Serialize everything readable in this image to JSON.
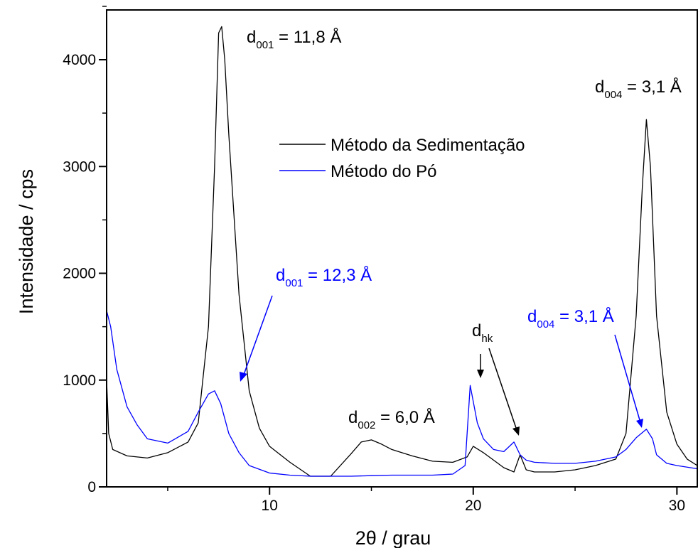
{
  "chart_data": {
    "type": "line",
    "title": "",
    "xlabel": "2θ / grau",
    "ylabel": "Intensidade / cps",
    "xlim": [
      2,
      31
    ],
    "ylim": [
      0,
      4500
    ],
    "x_ticks": [
      10,
      20,
      30
    ],
    "y_ticks": [
      0,
      1000,
      2000,
      3000,
      4000
    ],
    "grid": false,
    "legend_position": "center",
    "colors": {
      "black": "#000000",
      "blue": "#0000ff"
    },
    "series": [
      {
        "name": "Método da Sedimentação",
        "color": "#000000",
        "points": [
          [
            2.0,
            1000
          ],
          [
            2.1,
            500
          ],
          [
            2.3,
            350
          ],
          [
            3,
            290
          ],
          [
            4,
            270
          ],
          [
            5,
            320
          ],
          [
            6,
            420
          ],
          [
            6.5,
            600
          ],
          [
            7,
            1500
          ],
          [
            7.3,
            3000
          ],
          [
            7.5,
            4250
          ],
          [
            7.65,
            4310
          ],
          [
            7.8,
            4000
          ],
          [
            8,
            3300
          ],
          [
            8.5,
            1800
          ],
          [
            9,
            900
          ],
          [
            9.5,
            550
          ],
          [
            10,
            380
          ],
          [
            11,
            230
          ],
          [
            12,
            100
          ],
          [
            13,
            100
          ],
          [
            14,
            310
          ],
          [
            14.5,
            420
          ],
          [
            15,
            440
          ],
          [
            15.5,
            400
          ],
          [
            16,
            350
          ],
          [
            17,
            290
          ],
          [
            18,
            240
          ],
          [
            19,
            230
          ],
          [
            19.7,
            280
          ],
          [
            20,
            380
          ],
          [
            20.5,
            320
          ],
          [
            21,
            250
          ],
          [
            21.5,
            180
          ],
          [
            22,
            140
          ],
          [
            22.3,
            300
          ],
          [
            22.6,
            160
          ],
          [
            23,
            140
          ],
          [
            24,
            140
          ],
          [
            25,
            160
          ],
          [
            26,
            200
          ],
          [
            27,
            260
          ],
          [
            27.5,
            500
          ],
          [
            28,
            1600
          ],
          [
            28.3,
            2800
          ],
          [
            28.5,
            3440
          ],
          [
            28.7,
            3000
          ],
          [
            29,
            1600
          ],
          [
            29.5,
            700
          ],
          [
            30,
            400
          ],
          [
            30.5,
            260
          ],
          [
            31,
            200
          ]
        ],
        "x": [
          2.0,
          2.1,
          2.3,
          3,
          4,
          5,
          6,
          6.5,
          7,
          7.3,
          7.5,
          7.65,
          7.8,
          8,
          8.5,
          9,
          9.5,
          10,
          11,
          12,
          13,
          14,
          14.5,
          15,
          15.5,
          16,
          17,
          18,
          19,
          19.7,
          20,
          20.5,
          21,
          21.5,
          22,
          22.3,
          22.6,
          23,
          24,
          25,
          26,
          27,
          27.5,
          28,
          28.3,
          28.5,
          28.7,
          29,
          29.5,
          30,
          30.5,
          31
        ],
        "y": [
          1000,
          500,
          350,
          290,
          270,
          320,
          420,
          600,
          1500,
          3000,
          4250,
          4310,
          4000,
          3300,
          1800,
          900,
          550,
          380,
          230,
          100,
          100,
          310,
          420,
          440,
          400,
          350,
          290,
          240,
          230,
          280,
          380,
          320,
          250,
          180,
          140,
          300,
          160,
          140,
          140,
          160,
          200,
          260,
          500,
          1600,
          2800,
          3440,
          3000,
          1600,
          700,
          400,
          260,
          200
        ]
      },
      {
        "name": "Método do Pó",
        "color": "#0000ff",
        "points": [
          [
            2.0,
            1650
          ],
          [
            2.2,
            1500
          ],
          [
            2.5,
            1100
          ],
          [
            3,
            750
          ],
          [
            3.5,
            580
          ],
          [
            4,
            450
          ],
          [
            5,
            410
          ],
          [
            6,
            520
          ],
          [
            6.5,
            700
          ],
          [
            7,
            870
          ],
          [
            7.3,
            900
          ],
          [
            7.6,
            780
          ],
          [
            8,
            500
          ],
          [
            8.5,
            320
          ],
          [
            9,
            200
          ],
          [
            10,
            130
          ],
          [
            11,
            110
          ],
          [
            12,
            100
          ],
          [
            13,
            100
          ],
          [
            14,
            100
          ],
          [
            15,
            105
          ],
          [
            16,
            110
          ],
          [
            17,
            110
          ],
          [
            18,
            110
          ],
          [
            19,
            120
          ],
          [
            19.6,
            200
          ],
          [
            19.85,
            950
          ],
          [
            20.2,
            600
          ],
          [
            20.5,
            450
          ],
          [
            21,
            350
          ],
          [
            21.5,
            330
          ],
          [
            22,
            420
          ],
          [
            22.3,
            300
          ],
          [
            22.6,
            250
          ],
          [
            23,
            230
          ],
          [
            24,
            220
          ],
          [
            25,
            220
          ],
          [
            26,
            240
          ],
          [
            27,
            280
          ],
          [
            27.5,
            350
          ],
          [
            28,
            460
          ],
          [
            28.5,
            540
          ],
          [
            28.8,
            450
          ],
          [
            29,
            300
          ],
          [
            29.5,
            220
          ],
          [
            30,
            200
          ],
          [
            31,
            170
          ]
        ],
        "x": [
          2.0,
          2.2,
          2.5,
          3,
          3.5,
          4,
          5,
          6,
          6.5,
          7,
          7.3,
          7.6,
          8,
          8.5,
          9,
          10,
          11,
          12,
          13,
          14,
          15,
          16,
          17,
          18,
          19,
          19.6,
          19.85,
          20.2,
          20.5,
          21,
          21.5,
          22,
          22.3,
          22.6,
          23,
          24,
          25,
          26,
          27,
          27.5,
          28,
          28.5,
          28.8,
          29,
          29.5,
          30,
          31
        ],
        "y": [
          1650,
          1500,
          1100,
          750,
          580,
          450,
          410,
          520,
          700,
          870,
          900,
          780,
          500,
          320,
          200,
          130,
          110,
          100,
          100,
          100,
          105,
          110,
          110,
          110,
          120,
          200,
          950,
          600,
          450,
          350,
          330,
          420,
          300,
          250,
          230,
          220,
          220,
          240,
          280,
          350,
          460,
          540,
          450,
          300,
          220,
          200,
          170
        ]
      }
    ],
    "annotations": [
      {
        "main": "d",
        "sub": "001",
        "rest": " = 11,8 Å",
        "color": "#000000"
      },
      {
        "main": "d",
        "sub": "004",
        "rest": " = 3,1 Å",
        "color": "#000000"
      },
      {
        "main": "d",
        "sub": "001",
        "rest": " = 12,3 Å",
        "color": "#0000ff"
      },
      {
        "main": "d",
        "sub": "002",
        "rest": " = 6,0 Å",
        "color": "#000000"
      },
      {
        "main": "d",
        "sub": "hk",
        "rest": "",
        "color": "#000000"
      },
      {
        "main": "d",
        "sub": "004",
        "rest": " = 3,1 Å",
        "color": "#0000ff"
      }
    ]
  }
}
